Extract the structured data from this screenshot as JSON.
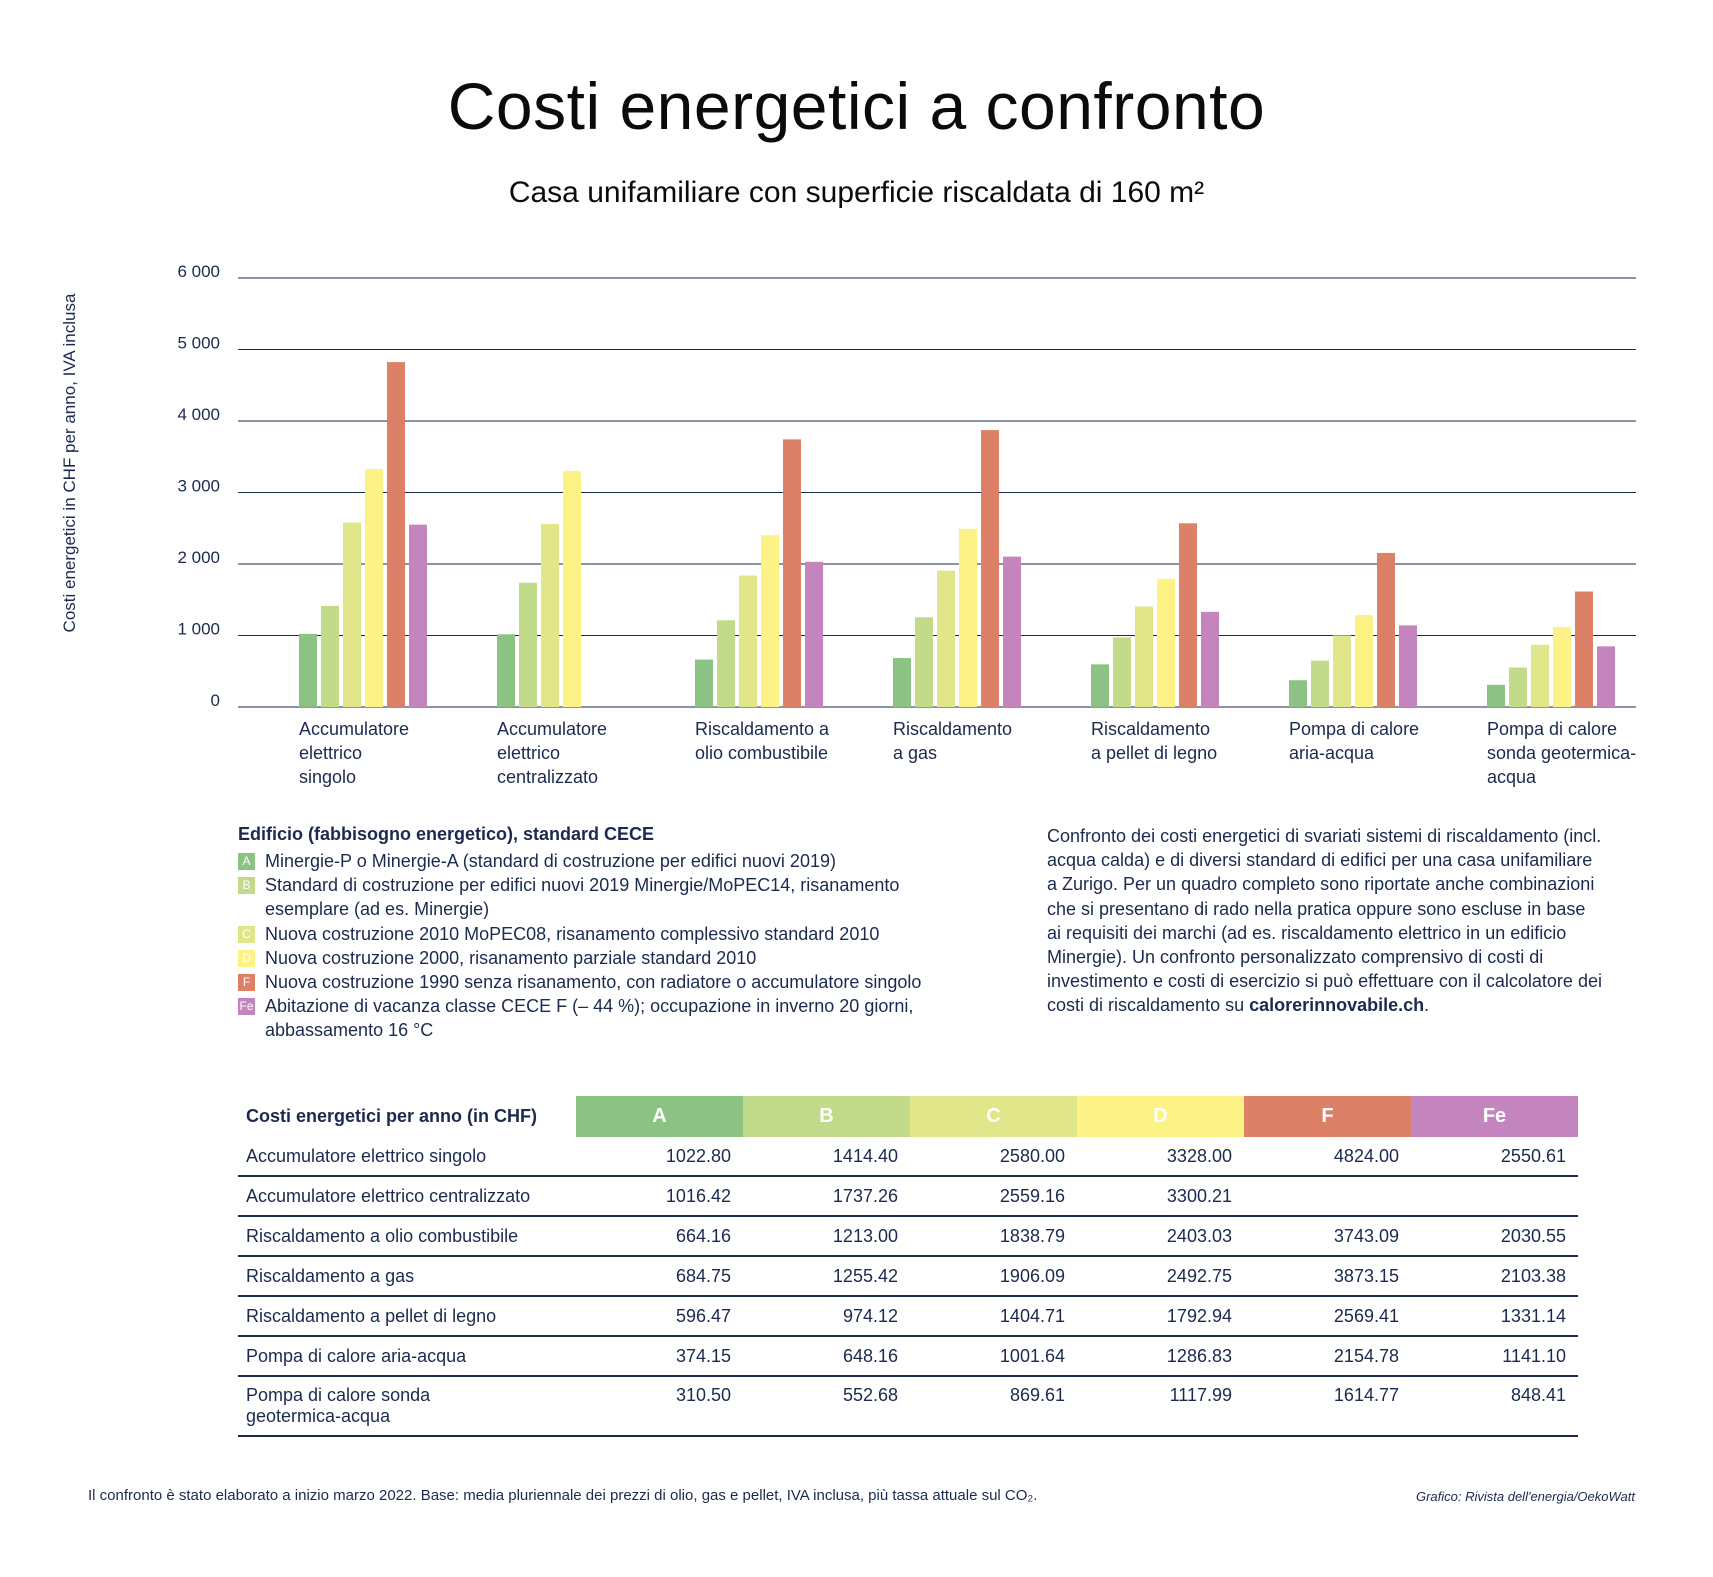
{
  "header": {
    "title": "Costi energetici a confronto",
    "subtitle": "Casa unifamiliare con superficie riscaldata di 160 m²"
  },
  "chart_data": {
    "type": "bar",
    "ylabel": "Costi energetici in CHF per anno, IVA inclusa",
    "ylim": [
      0,
      6000
    ],
    "yticks": [
      0,
      1000,
      2000,
      3000,
      4000,
      5000,
      6000
    ],
    "ytick_labels": [
      "0",
      "1 000",
      "2 000",
      "3 000",
      "4 000",
      "5 000",
      "6 000"
    ],
    "grid": true,
    "categories": [
      [
        "Accumulatore",
        "elettrico",
        "singolo"
      ],
      [
        "Accumulatore",
        "elettrico",
        "centralizzato"
      ],
      [
        "Riscaldamento a",
        "olio combustibile"
      ],
      [
        "Riscaldamento",
        "a gas"
      ],
      [
        "Riscaldamento",
        "a pellet di legno"
      ],
      [
        "Pompa di calore",
        "aria-acqua"
      ],
      [
        "Pompa di calore",
        "sonda geotermica-",
        "acqua"
      ]
    ],
    "series": [
      {
        "name": "A",
        "color": "#8cc283",
        "values": [
          1022.8,
          1016.42,
          664.16,
          684.75,
          596.47,
          374.15,
          310.5
        ]
      },
      {
        "name": "B",
        "color": "#c2db8a",
        "values": [
          1414.4,
          1737.26,
          1213.0,
          1255.42,
          974.12,
          648.16,
          552.68
        ]
      },
      {
        "name": "C",
        "color": "#e2e68a",
        "values": [
          2580.0,
          2559.16,
          1838.79,
          1906.09,
          1404.71,
          1001.64,
          869.61
        ]
      },
      {
        "name": "D",
        "color": "#fdf286",
        "values": [
          3328.0,
          3300.21,
          2403.03,
          2492.75,
          1792.94,
          1286.83,
          1117.99
        ]
      },
      {
        "name": "F",
        "color": "#dd8068",
        "values": [
          4824.0,
          null,
          3743.09,
          3873.15,
          2569.41,
          2154.78,
          1614.77
        ]
      },
      {
        "name": "Fe",
        "color": "#c485bf",
        "values": [
          2550.61,
          null,
          2030.55,
          2103.38,
          1331.14,
          1141.1,
          848.41
        ]
      }
    ]
  },
  "legend": {
    "heading": "Edificio (fabbisogno energetico), standard CECE",
    "items": [
      {
        "key": "A",
        "color": "#8cc283",
        "text": "Minergie-P o Minergie-A (standard di costruzione per edifici nuovi 2019)"
      },
      {
        "key": "B",
        "color": "#c2db8a",
        "text": "Standard di costruzione per edifici nuovi 2019 Minergie/MoPEC14, risanamento",
        "text2": "esemplare (ad es. Minergie)"
      },
      {
        "key": "C",
        "color": "#e2e68a",
        "text": "Nuova costruzione 2010 MoPEC08, risanamento complessivo standard 2010"
      },
      {
        "key": "D",
        "color": "#fdf286",
        "text": "Nuova costruzione 2000, risanamento parziale standard 2010"
      },
      {
        "key": "F",
        "color": "#dd8068",
        "text": "Nuova costruzione 1990 senza risanamento, con radiatore o accumulatore singolo"
      },
      {
        "key": "Fe",
        "color": "#c485bf",
        "text": "Abitazione di vacanza classe CECE F (– 44 %); occupazione in inverno 20 giorni,",
        "text2": "abbassamento 16 °C"
      }
    ]
  },
  "description": {
    "lines": [
      "Confronto dei costi energetici di svariati sistemi di riscaldamento (incl.",
      "acqua calda) e di diversi standard di edifici per una casa unifamiliare",
      "a Zurigo. Per un quadro completo sono riportate anche combinazioni",
      "che si presentano di rado nella pratica  oppure sono escluse in base",
      "ai requisiti dei marchi (ad es. riscaldamento elettrico in un edificio",
      "Minergie). Un confronto personalizzato comprensivo di costi di",
      "investimento e costi di esercizio si può effettuare con il calcolatore dei"
    ],
    "last_line_prefix": "costi di riscaldamento su ",
    "link": "calorerinnovabile.ch",
    "last_line_suffix": "."
  },
  "table": {
    "header_label": "Costi energetici per anno (in CHF)",
    "columns": [
      {
        "key": "A",
        "color": "#8cc283"
      },
      {
        "key": "B",
        "color": "#c2db8a"
      },
      {
        "key": "C",
        "color": "#e2e68a"
      },
      {
        "key": "D",
        "color": "#fdf286"
      },
      {
        "key": "F",
        "color": "#dd8068"
      },
      {
        "key": "Fe",
        "color": "#c485bf"
      }
    ],
    "rows": [
      {
        "name": "Accumulatore elettrico singolo",
        "values": [
          "1022.80",
          "1414.40",
          "2580.00",
          "3328.00",
          "4824.00",
          "2550.61"
        ]
      },
      {
        "name": "Accumulatore elettrico centralizzato",
        "values": [
          "1016.42",
          "1737.26",
          "2559.16",
          "3300.21",
          "",
          ""
        ]
      },
      {
        "name": "Riscaldamento a olio combustibile",
        "values": [
          "664.16",
          "1213.00",
          "1838.79",
          "2403.03",
          "3743.09",
          "2030.55"
        ]
      },
      {
        "name": "Riscaldamento a gas",
        "values": [
          "684.75",
          "1255.42",
          "1906.09",
          "2492.75",
          "3873.15",
          "2103.38"
        ]
      },
      {
        "name": "Riscaldamento a pellet di legno",
        "values": [
          "596.47",
          "974.12",
          "1404.71",
          "1792.94",
          "2569.41",
          "1331.14"
        ]
      },
      {
        "name": "Pompa di calore aria-acqua",
        "values": [
          "374.15",
          "648.16",
          "1001.64",
          "1286.83",
          "2154.78",
          "1141.10"
        ]
      },
      {
        "name": "Pompa di calore sonda geotermica-acqua",
        "name_lines": [
          "Pompa di calore sonda",
          "geotermica-acqua"
        ],
        "values": [
          "310.50",
          "552.68",
          "869.61",
          "1117.99",
          "1614.77",
          "848.41"
        ]
      }
    ]
  },
  "footer": {
    "note": "Il confronto è stato elaborato a inizio marzo 2022. Base: media pluriennale dei prezzi di olio, gas e pellet, IVA inclusa, più tassa attuale sul CO₂.",
    "credit": "Grafico: Rivista dell'energia/OekoWatt"
  }
}
